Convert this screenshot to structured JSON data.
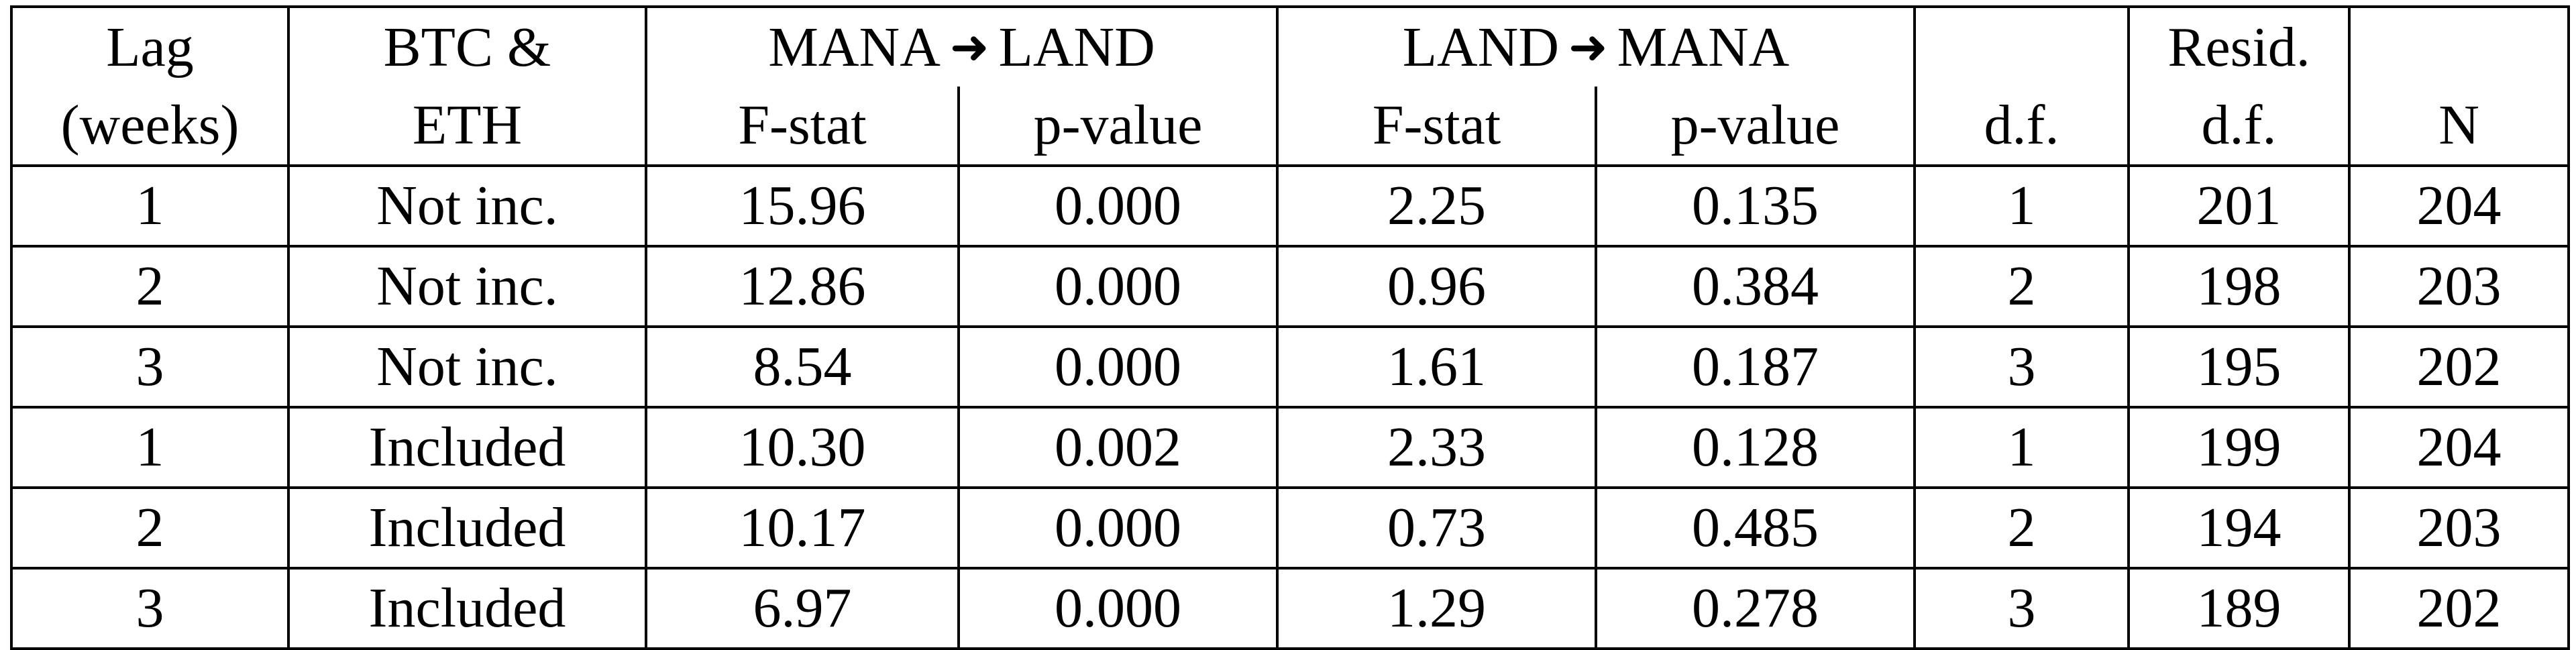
{
  "caption_fragment": "",
  "table": {
    "header_row1": {
      "lag": "Lag",
      "btc_eth": "BTC &",
      "mana_land_from": "MANA",
      "mana_land_to": "LAND",
      "land_mana_from": "LAND",
      "land_mana_to": "MANA",
      "df": "",
      "resid_df": "Resid.",
      "n": ""
    },
    "header_row2": {
      "lag": "(weeks)",
      "btc_eth": "ETH",
      "f_stat_1": "F-stat",
      "p_value_1": "p-value",
      "f_stat_2": "F-stat",
      "p_value_2": "p-value",
      "df": "d.f.",
      "resid_df": "d.f.",
      "n": "N"
    },
    "arrow_icon": "right-arrow-icon",
    "rows": [
      {
        "lag": "1",
        "btc_eth": "Not inc.",
        "f1": "15.96",
        "p1": "0.000",
        "f2": "2.25",
        "p2": "0.135",
        "df": "1",
        "resid": "201",
        "n": "204"
      },
      {
        "lag": "2",
        "btc_eth": "Not inc.",
        "f1": "12.86",
        "p1": "0.000",
        "f2": "0.96",
        "p2": "0.384",
        "df": "2",
        "resid": "198",
        "n": "203"
      },
      {
        "lag": "3",
        "btc_eth": "Not inc.",
        "f1": "8.54",
        "p1": "0.000",
        "f2": "1.61",
        "p2": "0.187",
        "df": "3",
        "resid": "195",
        "n": "202"
      },
      {
        "lag": "1",
        "btc_eth": "Included",
        "f1": "10.30",
        "p1": "0.002",
        "f2": "2.33",
        "p2": "0.128",
        "df": "1",
        "resid": "199",
        "n": "204"
      },
      {
        "lag": "2",
        "btc_eth": "Included",
        "f1": "10.17",
        "p1": "0.000",
        "f2": "0.73",
        "p2": "0.485",
        "df": "2",
        "resid": "194",
        "n": "203"
      },
      {
        "lag": "3",
        "btc_eth": "Included",
        "f1": "6.97",
        "p1": "0.000",
        "f2": "1.29",
        "p2": "0.278",
        "df": "3",
        "resid": "189",
        "n": "202"
      }
    ]
  }
}
